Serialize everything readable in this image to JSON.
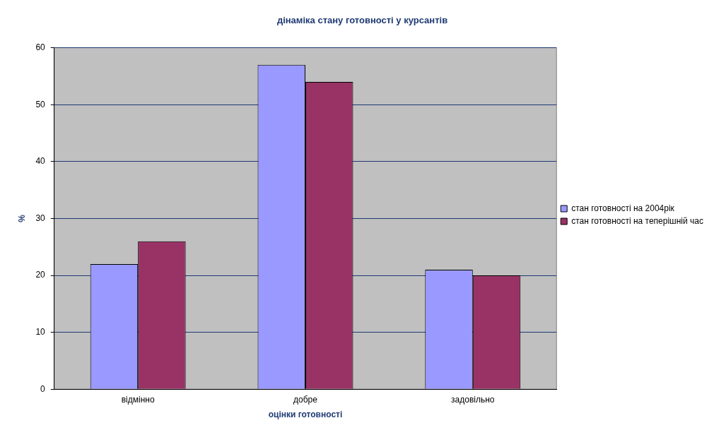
{
  "chart_data": {
    "type": "bar",
    "title": "дінаміка стану готовності у курсантів",
    "xlabel": "оцінки готовності",
    "ylabel": "%",
    "categories": [
      "відмінно",
      "добре",
      "задовільно"
    ],
    "series": [
      {
        "name": "стан готовності на 2004рік",
        "color": "#9999ff",
        "values": [
          22,
          57,
          21
        ]
      },
      {
        "name": "стан готовності на теперішній час",
        "color": "#993366",
        "values": [
          26,
          54,
          20
        ]
      }
    ],
    "ylim": [
      0,
      60
    ],
    "yticks": [
      0,
      10,
      20,
      30,
      40,
      50,
      60
    ],
    "grid": "y",
    "legend": "right"
  }
}
